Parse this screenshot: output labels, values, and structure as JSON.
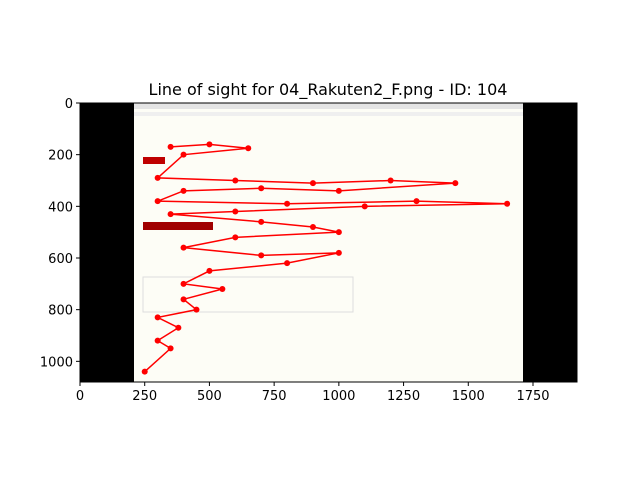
{
  "chart_data": {
    "type": "line",
    "title": "Line of sight for 04_Rakuten2_F.png - ID: 104",
    "x": [
      350,
      500,
      650,
      400,
      300,
      600,
      900,
      1200,
      1450,
      1000,
      700,
      400,
      300,
      800,
      1300,
      1650,
      1100,
      600,
      350,
      700,
      900,
      1000,
      600,
      400,
      700,
      1000,
      800,
      500,
      400,
      550,
      400,
      450,
      300,
      380,
      300,
      350,
      250
    ],
    "values": [
      170,
      160,
      175,
      200,
      290,
      300,
      310,
      300,
      310,
      340,
      330,
      340,
      380,
      390,
      380,
      390,
      400,
      420,
      430,
      460,
      480,
      500,
      520,
      560,
      590,
      580,
      620,
      650,
      700,
      720,
      760,
      800,
      830,
      870,
      920,
      950,
      1040
    ],
    "color": "#ff0000",
    "xlim": [
      0,
      1920
    ],
    "ylim": [
      1080,
      0
    ],
    "xticks": [
      0,
      250,
      500,
      750,
      1000,
      1250,
      1500,
      1750
    ],
    "yticks": [
      0,
      200,
      400,
      600,
      800,
      1000
    ]
  }
}
